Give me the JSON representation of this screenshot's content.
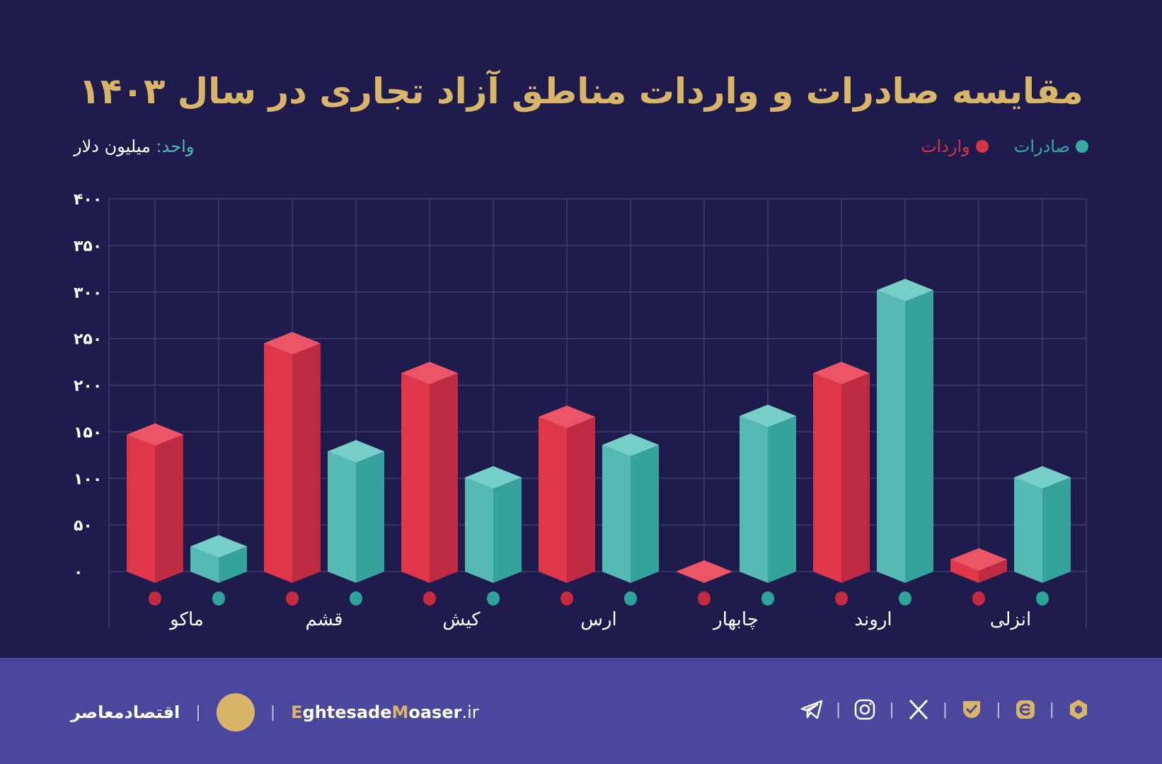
{
  "title": "مقایسه صادرات و واردات مناطق آزاد تجاری در سال ۱۴۰۳",
  "unit": {
    "key": "واحد:",
    "value": "میلیون دلار"
  },
  "colors": {
    "exports": "#3aa9a1",
    "imports": "#e03649",
    "title": "#d9b56a",
    "background": "#1f1c4d",
    "footer": "#4a479c"
  },
  "chart_data": {
    "type": "bar",
    "title": "مقایسه صادرات و واردات مناطق آزاد تجاری در سال ۱۴۰۳",
    "ylabel": "واحد: میلیون دلار",
    "ylim": [
      0,
      400
    ],
    "yticks": [
      0,
      50,
      100,
      150,
      200,
      250,
      300,
      350,
      400
    ],
    "ytick_labels": [
      "۰",
      "۵۰",
      "۱۰۰",
      "۱۵۰",
      "۲۰۰",
      "۲۵۰",
      "۳۰۰",
      "۳۵۰",
      "۴۰۰"
    ],
    "grid": true,
    "legend_placement": "top-right",
    "categories": [
      "ماکو",
      "قشم",
      "کیش",
      "ارس",
      "چابهار",
      "اروند",
      "انزلی"
    ],
    "series": [
      {
        "name": "واردات",
        "color": "#e03649",
        "values": [
          147,
          245,
          213,
          166,
          0,
          213,
          13
        ]
      },
      {
        "name": "صادرات",
        "color": "#3aa9a1",
        "values": [
          27,
          129,
          101,
          136,
          167,
          302,
          101
        ]
      }
    ]
  },
  "footer": {
    "brand_fa": "اقتصادمعاصر",
    "site_e": "E",
    "site_1": "ghtesade",
    "site_m": "M",
    "site_2": "oaser",
    "site_tld": ".ir",
    "separator": "|",
    "social_icons": [
      "telegram-icon",
      "instagram-icon",
      "x-icon",
      "bale-icon",
      "eitaa-icon",
      "rubika-icon"
    ]
  }
}
